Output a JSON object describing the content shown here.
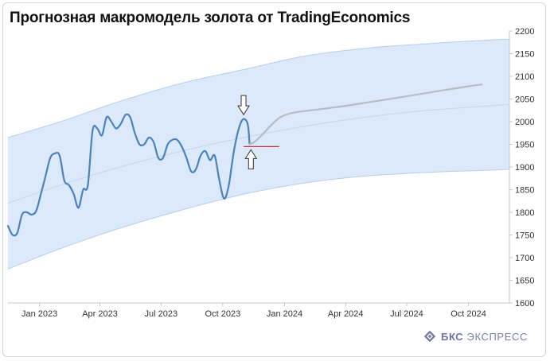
{
  "title": "Прогнозная макромодель золота от TradingEconomics",
  "brand": {
    "bold": "БКС",
    "rest": "ЭКСПРЕСС",
    "icon": "bks-logo-icon"
  },
  "colors": {
    "band_fill": "#dce9fb",
    "band_stroke": "#b7cdef",
    "actual": "#4a82bf",
    "forecast": "#b9bcc4",
    "trend": "#c2d6ef",
    "level_line": "#c2313f",
    "arrow": "#333333"
  },
  "chart_data": {
    "type": "line",
    "title": "Прогнозная макромодель золота от TradingEconomics",
    "xlabel": "",
    "ylabel": "",
    "x_ticks": [
      "Jan 2023",
      "Apr 2023",
      "Jul 2023",
      "Oct 2023",
      "Jan 2024",
      "Apr 2024",
      "Jul 2024",
      "Oct 2024"
    ],
    "x_tick_dates": [
      "2023-01-01",
      "2023-04-01",
      "2023-07-01",
      "2023-10-01",
      "2024-01-01",
      "2024-04-01",
      "2024-07-01",
      "2024-10-01"
    ],
    "y_ticks": [
      1600,
      1650,
      1700,
      1750,
      1800,
      1850,
      1900,
      1950,
      2000,
      2050,
      2100,
      2150,
      2200
    ],
    "xlim": [
      "2022-11-15",
      "2024-12-01"
    ],
    "ylim": [
      1600,
      2200
    ],
    "grid": false,
    "series": [
      {
        "kind": "actual",
        "points": [
          [
            "2022-11-15",
            1770
          ],
          [
            "2022-11-22",
            1750
          ],
          [
            "2022-11-29",
            1755
          ],
          [
            "2022-12-06",
            1795
          ],
          [
            "2022-12-13",
            1800
          ],
          [
            "2022-12-20",
            1795
          ],
          [
            "2022-12-27",
            1803
          ],
          [
            "2023-01-03",
            1840
          ],
          [
            "2023-01-10",
            1880
          ],
          [
            "2023-01-17",
            1920
          ],
          [
            "2023-01-24",
            1930
          ],
          [
            "2023-01-31",
            1925
          ],
          [
            "2023-02-07",
            1870
          ],
          [
            "2023-02-14",
            1860
          ],
          [
            "2023-02-21",
            1840
          ],
          [
            "2023-02-28",
            1810
          ],
          [
            "2023-03-07",
            1850
          ],
          [
            "2023-03-14",
            1860
          ],
          [
            "2023-03-21",
            1980
          ],
          [
            "2023-03-28",
            1985
          ],
          [
            "2023-04-04",
            1970
          ],
          [
            "2023-04-11",
            2010
          ],
          [
            "2023-04-18",
            2000
          ],
          [
            "2023-04-25",
            1985
          ],
          [
            "2023-05-02",
            1995
          ],
          [
            "2023-05-09",
            2015
          ],
          [
            "2023-05-16",
            2010
          ],
          [
            "2023-05-23",
            1975
          ],
          [
            "2023-05-30",
            1950
          ],
          [
            "2023-06-06",
            1950
          ],
          [
            "2023-06-13",
            1965
          ],
          [
            "2023-06-20",
            1955
          ],
          [
            "2023-06-27",
            1920
          ],
          [
            "2023-07-04",
            1920
          ],
          [
            "2023-07-11",
            1950
          ],
          [
            "2023-07-18",
            1960
          ],
          [
            "2023-07-25",
            1960
          ],
          [
            "2023-08-01",
            1945
          ],
          [
            "2023-08-08",
            1920
          ],
          [
            "2023-08-15",
            1890
          ],
          [
            "2023-08-22",
            1895
          ],
          [
            "2023-08-29",
            1925
          ],
          [
            "2023-09-05",
            1935
          ],
          [
            "2023-09-12",
            1915
          ],
          [
            "2023-09-19",
            1925
          ],
          [
            "2023-09-26",
            1870
          ],
          [
            "2023-10-03",
            1830
          ],
          [
            "2023-10-10",
            1860
          ],
          [
            "2023-10-17",
            1930
          ],
          [
            "2023-10-24",
            1980
          ],
          [
            "2023-10-31",
            2005
          ],
          [
            "2023-11-07",
            1995
          ],
          [
            "2023-11-10",
            1950
          ]
        ]
      },
      {
        "kind": "forecast",
        "points": [
          [
            "2023-11-10",
            1950
          ],
          [
            "2023-11-17",
            1955
          ],
          [
            "2023-11-28",
            1970
          ],
          [
            "2023-12-12",
            1992
          ],
          [
            "2023-12-26",
            2010
          ],
          [
            "2024-01-15",
            2020
          ],
          [
            "2024-02-15",
            2026
          ],
          [
            "2024-04-01",
            2035
          ],
          [
            "2024-05-15",
            2045
          ],
          [
            "2024-07-01",
            2056
          ],
          [
            "2024-08-15",
            2067
          ],
          [
            "2024-10-01",
            2078
          ],
          [
            "2024-10-21",
            2082
          ]
        ]
      },
      {
        "kind": "trend",
        "points": [
          [
            "2022-11-15",
            1820
          ],
          [
            "2023-02-01",
            1860
          ],
          [
            "2023-05-01",
            1900
          ],
          [
            "2023-08-01",
            1935
          ],
          [
            "2023-11-01",
            1965
          ],
          [
            "2024-02-01",
            1990
          ],
          [
            "2024-05-01",
            2010
          ],
          [
            "2024-08-01",
            2025
          ],
          [
            "2024-11-01",
            2035
          ],
          [
            "2024-12-01",
            2038
          ]
        ]
      }
    ],
    "band": {
      "upper": [
        [
          "2022-11-15",
          1965
        ],
        [
          "2023-02-01",
          2000
        ],
        [
          "2023-05-01",
          2045
        ],
        [
          "2023-08-01",
          2085
        ],
        [
          "2023-11-01",
          2115
        ],
        [
          "2024-02-01",
          2145
        ],
        [
          "2024-05-01",
          2162
        ],
        [
          "2024-08-01",
          2172
        ],
        [
          "2024-11-01",
          2180
        ],
        [
          "2024-12-01",
          2182
        ]
      ],
      "lower": [
        [
          "2022-11-15",
          1675
        ],
        [
          "2023-02-01",
          1720
        ],
        [
          "2023-05-01",
          1765
        ],
        [
          "2023-08-01",
          1805
        ],
        [
          "2023-11-01",
          1840
        ],
        [
          "2024-02-01",
          1865
        ],
        [
          "2024-05-01",
          1880
        ],
        [
          "2024-08-01",
          1888
        ],
        [
          "2024-11-01",
          1893
        ],
        [
          "2024-12-01",
          1895
        ]
      ]
    },
    "annotations": [
      {
        "kind": "arrow-down",
        "date": "2023-11-01",
        "value": 2005
      },
      {
        "kind": "arrow-up",
        "date": "2023-11-12",
        "value": 1945
      },
      {
        "kind": "level-line",
        "from": "2023-11-01",
        "to": "2023-12-24",
        "value": 1945
      }
    ]
  }
}
